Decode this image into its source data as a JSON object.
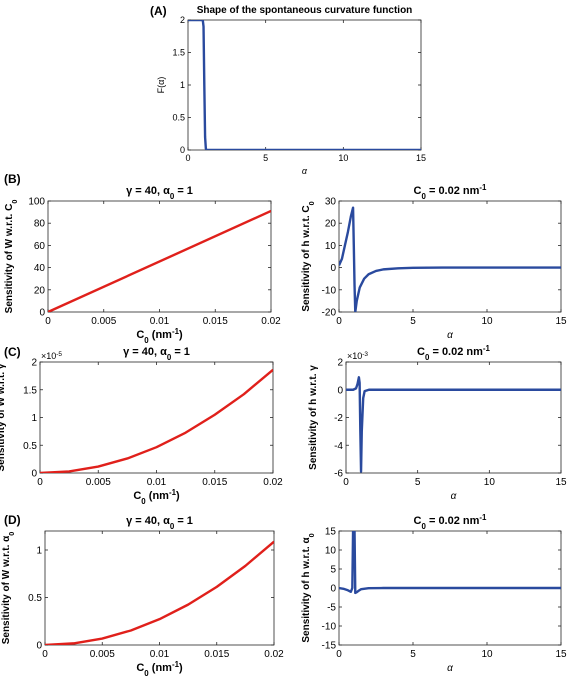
{
  "figure": {
    "panel_labels": [
      "(A)",
      "(B)",
      "(C)",
      "(D)"
    ],
    "colors": {
      "red": "#e0201b",
      "blue": "#2a4a9e"
    }
  },
  "chart_data": [
    {
      "id": "A",
      "type": "line",
      "panel_label": "(A)",
      "title": "Shape of the spontaneous curvature function",
      "xlabel": "α",
      "ylabel": "F(α)",
      "xlim": [
        0,
        15
      ],
      "ylim": [
        0,
        2
      ],
      "xticks": [
        0,
        5,
        10,
        15
      ],
      "yticks": [
        0,
        0.5,
        1,
        1.5,
        2
      ],
      "xtick_labels": [
        "0",
        "5",
        "10",
        "15"
      ],
      "ytick_labels": [
        "0",
        "0.5",
        "1",
        "1.5",
        "2"
      ],
      "series": [
        {
          "color": "#2a4a9e",
          "x": [
            0,
            0.95,
            1.0,
            1.05,
            1.1,
            1.15,
            1.2,
            15
          ],
          "y": [
            2,
            2,
            1.9,
            1.0,
            0.2,
            0.02,
            0,
            0
          ]
        }
      ]
    },
    {
      "id": "B-left",
      "type": "line",
      "title": "γ = 40, α0 = 1",
      "xlabel": "C0 (nm-1)",
      "ylabel": "Sensitivity of W  w.r.t. C0",
      "xlim": [
        0,
        0.02
      ],
      "ylim": [
        0,
        100
      ],
      "xticks": [
        0,
        0.005,
        0.01,
        0.015,
        0.02
      ],
      "yticks": [
        0,
        20,
        40,
        60,
        80,
        100
      ],
      "xtick_labels": [
        "0",
        "0.005",
        "0.01",
        "0.015",
        "0.02"
      ],
      "ytick_labels": [
        "0",
        "20",
        "40",
        "60",
        "80",
        "100"
      ],
      "series": [
        {
          "color": "#e0201b",
          "x": [
            0,
            0.02
          ],
          "y": [
            0,
            91
          ]
        }
      ]
    },
    {
      "id": "B-right",
      "type": "line",
      "title": "C0 = 0.02 nm-1",
      "xlabel": "α",
      "ylabel": "Sensitivity of h w.r.t. C0",
      "xlim": [
        0,
        15
      ],
      "ylim": [
        -20,
        30
      ],
      "xticks": [
        0,
        5,
        10,
        15
      ],
      "yticks": [
        -20,
        -10,
        0,
        10,
        20,
        30
      ],
      "xtick_labels": [
        "0",
        "5",
        "10",
        "15"
      ],
      "ytick_labels": [
        "-20",
        "-10",
        "0",
        "10",
        "20",
        "30"
      ],
      "series": [
        {
          "color": "#2a4a9e",
          "x": [
            0,
            0.2,
            0.4,
            0.6,
            0.8,
            0.95,
            1.0,
            1.05,
            1.1,
            1.2,
            1.4,
            1.7,
            2.0,
            2.5,
            3.0,
            4.0,
            5.0,
            7.0,
            10.0,
            15.0
          ],
          "y": [
            1,
            4,
            10,
            16,
            23,
            27,
            10,
            -8,
            -20,
            -15,
            -9,
            -5,
            -3,
            -1.5,
            -0.8,
            -0.3,
            -0.1,
            0,
            0,
            0
          ]
        }
      ]
    },
    {
      "id": "C-left",
      "type": "line",
      "title": "γ = 40, α0 = 1",
      "xlabel": "C0 (nm-1)",
      "ylabel": "Sensitivity of W  w.r.t. γ",
      "xlim": [
        0,
        0.02
      ],
      "ylim": [
        0,
        2e-05
      ],
      "y_multiplier": "×10-5",
      "xticks": [
        0,
        0.005,
        0.01,
        0.015,
        0.02
      ],
      "yticks": [
        0,
        5e-06,
        1e-05,
        1.5e-05,
        2e-05
      ],
      "xtick_labels": [
        "0",
        "0.005",
        "0.01",
        "0.015",
        "0.02"
      ],
      "ytick_labels": [
        "0",
        "0.5",
        "1",
        "1.5",
        "2"
      ],
      "series": [
        {
          "color": "#e0201b",
          "x": [
            0,
            0.0025,
            0.005,
            0.0075,
            0.01,
            0.0125,
            0.015,
            0.0175,
            0.02
          ],
          "y": [
            0,
            2.9e-07,
            1.16e-06,
            2.62e-06,
            4.65e-06,
            7.27e-06,
            1.05e-05,
            1.42e-05,
            1.86e-05
          ]
        }
      ]
    },
    {
      "id": "C-right",
      "type": "line",
      "title": "C0 = 0.02 nm-1",
      "xlabel": "α",
      "ylabel": "Sensitivity of h w.r.t. γ",
      "xlim": [
        0,
        15
      ],
      "ylim": [
        -0.006,
        0.002
      ],
      "y_multiplier": "×10-3",
      "xticks": [
        0,
        5,
        10,
        15
      ],
      "yticks": [
        -0.006,
        -0.004,
        -0.002,
        0,
        0.002
      ],
      "xtick_labels": [
        "0",
        "5",
        "10",
        "15"
      ],
      "ytick_labels": [
        "-6",
        "-4",
        "-2",
        "0",
        "2"
      ],
      "series": [
        {
          "color": "#2a4a9e",
          "x": [
            0,
            0.5,
            0.7,
            0.8,
            0.9,
            0.95,
            1.0,
            1.05,
            1.1,
            1.2,
            1.3,
            1.6,
            2.0,
            3.0,
            15.0
          ],
          "y": [
            0,
            0,
            0.0001,
            0.0004,
            0.0009,
            0.0005,
            -0.003,
            -0.0059,
            -0.003,
            -0.0006,
            -0.0001,
            0,
            0,
            0,
            0
          ]
        }
      ]
    },
    {
      "id": "D-left",
      "type": "line",
      "title": "γ = 40, α0 = 1",
      "xlabel": "C0 (nm-1)",
      "ylabel": "Sensitivity of W  w.r.t. α0",
      "xlim": [
        0,
        0.02
      ],
      "ylim": [
        0,
        1.2
      ],
      "xticks": [
        0,
        0.005,
        0.01,
        0.015,
        0.02
      ],
      "yticks": [
        0,
        0.5,
        1
      ],
      "xtick_labels": [
        "0",
        "0.005",
        "0.01",
        "0.015",
        "0.02"
      ],
      "ytick_labels": [
        "0",
        "0.5",
        "1"
      ],
      "series": [
        {
          "color": "#e0201b",
          "x": [
            0,
            0.0025,
            0.005,
            0.0075,
            0.01,
            0.0125,
            0.015,
            0.0175,
            0.02
          ],
          "y": [
            0,
            0.017,
            0.068,
            0.153,
            0.272,
            0.425,
            0.612,
            0.833,
            1.088
          ]
        }
      ]
    },
    {
      "id": "D-right",
      "type": "line",
      "title": "C0 = 0.02 nm-1",
      "xlabel": "α",
      "ylabel": "Sensitivity of h w.r.t. α0",
      "xlim": [
        0,
        15
      ],
      "ylim": [
        -15,
        15
      ],
      "xticks": [
        0,
        5,
        10,
        15
      ],
      "yticks": [
        -15,
        -10,
        -5,
        0,
        5,
        10,
        15
      ],
      "xtick_labels": [
        "0",
        "5",
        "10",
        "15"
      ],
      "ytick_labels": [
        "-15",
        "-10",
        "-5",
        "0",
        "5",
        "10",
        "15"
      ],
      "series": [
        {
          "color": "#2a4a9e",
          "x": [
            0,
            0.3,
            0.6,
            0.8,
            0.9,
            0.95,
            1.0,
            1.05,
            1.1,
            1.2,
            1.3,
            1.5,
            2.0,
            3.0,
            15.0
          ],
          "y": [
            0,
            -0.2,
            -0.6,
            -1.0,
            0,
            15,
            15,
            15,
            -1.3,
            -1.1,
            -0.8,
            -0.3,
            -0.05,
            0,
            0
          ]
        }
      ]
    }
  ]
}
